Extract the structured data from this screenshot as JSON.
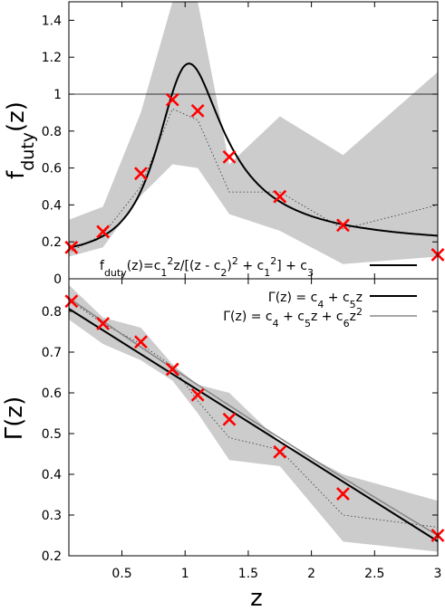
{
  "chart_data": [
    {
      "type": "line",
      "ylabel_main": "f",
      "ylabel_sub": "duty",
      "ylabel_tail": "(z)",
      "xlim": [
        0.08,
        3.0
      ],
      "ylim": [
        0,
        1.5
      ],
      "yticks": [
        "0",
        "0.2",
        "0.4",
        "0.6",
        "0.8",
        "1",
        "1.2",
        "1.4"
      ],
      "ytick_values": [
        0,
        0.2,
        0.4,
        0.6,
        0.8,
        1.0,
        1.2,
        1.4
      ],
      "reference_line_y": 1.0,
      "legend": {
        "prefix": "f",
        "prefix_sub": "duty",
        "p1": "(z)=c",
        "p1_sub": "1",
        "p1_sup": "2",
        "p2": "z/[(z - c",
        "p2_sub": "2",
        "p3": ")",
        "p3_sup": "2",
        "p4": " + c",
        "p4_sub": "1",
        "p4_sup": "2",
        "p5": "] + c",
        "p5_sub": "3"
      },
      "points": {
        "x": [
          0.1,
          0.35,
          0.65,
          0.9,
          1.1,
          1.35,
          1.75,
          2.25,
          3.0
        ],
        "y": [
          0.17,
          0.255,
          0.57,
          0.97,
          0.91,
          0.66,
          0.445,
          0.29,
          0.13
        ],
        "color": "#ff0000"
      },
      "dotted_series": {
        "x": [
          0.1,
          0.35,
          0.65,
          0.9,
          1.1,
          1.35,
          1.75,
          2.25,
          3.0
        ],
        "y": [
          0.15,
          0.24,
          0.5,
          0.92,
          0.86,
          0.47,
          0.47,
          0.27,
          0.4
        ]
      },
      "band": {
        "x": [
          0.08,
          0.35,
          0.65,
          0.9,
          1.1,
          1.35,
          1.75,
          2.25,
          3.0
        ],
        "lower": [
          0.12,
          0.17,
          0.45,
          0.62,
          0.6,
          0.35,
          0.26,
          0.08,
          0.12
        ],
        "upper": [
          0.32,
          0.39,
          0.9,
          1.5,
          1.5,
          0.62,
          0.88,
          0.67,
          1.12
        ],
        "color": "#cccccc"
      },
      "fit": {
        "c1": 0.32,
        "c2": 0.98,
        "c3": 0.16,
        "color": "#000000"
      }
    },
    {
      "type": "line",
      "ylabel": "Γ(z)",
      "xlabel": "z",
      "xlim": [
        0.08,
        3.0
      ],
      "ylim": [
        0.2,
        0.88
      ],
      "xticks": [
        "0.5",
        "1",
        "1.5",
        "2",
        "2.5",
        "3"
      ],
      "xtick_values": [
        0.5,
        1.0,
        1.5,
        2.0,
        2.5,
        3.0
      ],
      "yticks": [
        "0.2",
        "0.3",
        "0.4",
        "0.5",
        "0.6",
        "0.7",
        "0.8"
      ],
      "ytick_values": [
        0.2,
        0.3,
        0.4,
        0.5,
        0.6,
        0.7,
        0.8
      ],
      "legend": [
        {
          "parts": [
            "Γ(z) = c",
            "4",
            " + c",
            "5",
            "z"
          ],
          "color": "#000000"
        },
        {
          "parts": [
            "Γ(z) = c",
            "4",
            " + c",
            "5",
            "z + c",
            "6",
            "z",
            "2"
          ],
          "color": "#888888"
        }
      ],
      "points": {
        "x": [
          0.1,
          0.35,
          0.65,
          0.9,
          1.1,
          1.35,
          1.75,
          2.25,
          3.0
        ],
        "y": [
          0.825,
          0.77,
          0.725,
          0.658,
          0.595,
          0.535,
          0.455,
          0.352,
          0.25
        ],
        "color": "#ff0000"
      },
      "dotted_series": {
        "x": [
          0.1,
          0.35,
          0.65,
          0.9,
          1.1,
          1.35,
          1.75,
          2.25,
          3.0
        ],
        "y": [
          0.825,
          0.77,
          0.72,
          0.665,
          0.58,
          0.49,
          0.46,
          0.3,
          0.27
        ]
      },
      "band": {
        "x": [
          0.08,
          0.35,
          0.65,
          0.9,
          1.1,
          1.35,
          1.75,
          2.25,
          3.0
        ],
        "lower": [
          0.78,
          0.72,
          0.68,
          0.63,
          0.55,
          0.435,
          0.42,
          0.235,
          0.21
        ],
        "upper": [
          0.865,
          0.785,
          0.76,
          0.67,
          0.62,
          0.6,
          0.48,
          0.4,
          0.335
        ],
        "color": "#cccccc"
      },
      "linear_fit": {
        "c4": 0.822,
        "c5": -0.1955,
        "color": "#000000"
      },
      "quadratic_fit": {
        "c4": 0.85,
        "c5": -0.215,
        "c6": 0.005,
        "color": "#888888"
      }
    }
  ]
}
